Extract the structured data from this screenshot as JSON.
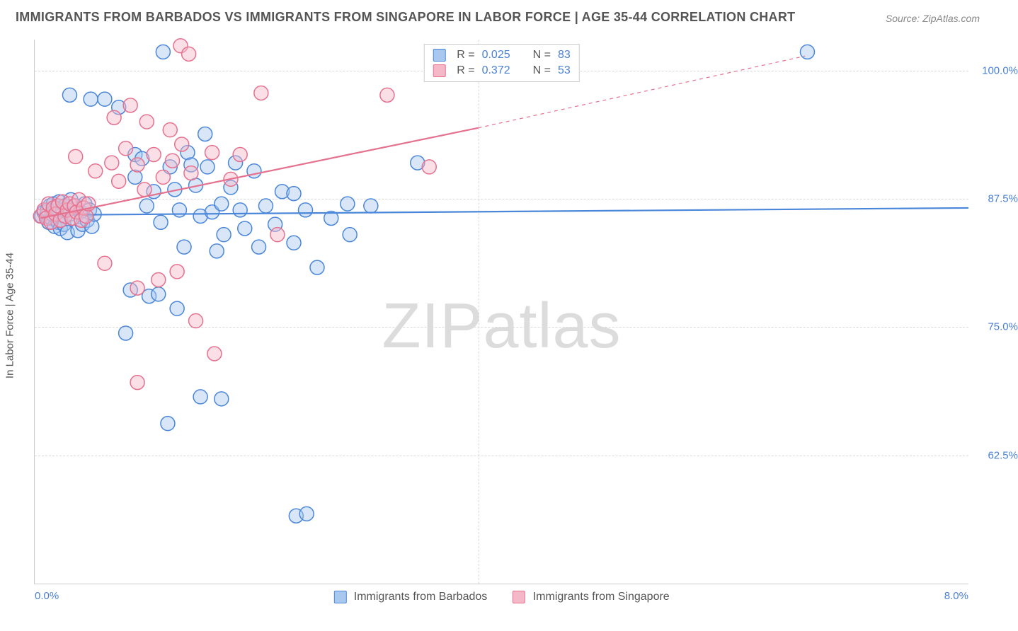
{
  "title": "IMMIGRANTS FROM BARBADOS VS IMMIGRANTS FROM SINGAPORE IN LABOR FORCE | AGE 35-44 CORRELATION CHART",
  "source": "Source: ZipAtlas.com",
  "ylabel": "In Labor Force | Age 35-44",
  "watermark_a": "ZIP",
  "watermark_b": "atlas",
  "chart": {
    "type": "scatter",
    "background_color": "#ffffff",
    "grid_color": "#d8d8d8",
    "axis_color": "#cccccc",
    "tick_label_color": "#4a7fd6",
    "axis_label_color": "#555555",
    "title_color": "#555555",
    "title_fontsize": 18,
    "label_fontsize": 15,
    "tick_fontsize": 15,
    "xlim": [
      0,
      8
    ],
    "ylim": [
      50,
      103
    ],
    "xticks": [
      0,
      8
    ],
    "xtick_labels": [
      "0.0%",
      "8.0%"
    ],
    "yticks": [
      62.5,
      75,
      87.5,
      100
    ],
    "ytick_labels": [
      "62.5%",
      "75.0%",
      "87.5%",
      "100.0%"
    ],
    "vgrid_at": [
      3.8
    ],
    "marker_radius": 10,
    "marker_opacity": 0.45,
    "line_width": 2.2,
    "series": [
      {
        "name": "Immigrants from Barbados",
        "color_fill": "#a9c8f0",
        "color_stroke": "#4a86d9",
        "R": "0.025",
        "N": "83",
        "trend": {
          "x1": 0.05,
          "y1": 85.9,
          "x2": 8.0,
          "y2": 86.6,
          "dash_from_x": 8.5
        },
        "points": [
          [
            0.06,
            85.8
          ],
          [
            0.08,
            86.2
          ],
          [
            0.1,
            85.8
          ],
          [
            0.11,
            86.4
          ],
          [
            0.12,
            85.2
          ],
          [
            0.13,
            86.8
          ],
          [
            0.14,
            85.6
          ],
          [
            0.15,
            86.0
          ],
          [
            0.16,
            87.0
          ],
          [
            0.17,
            84.8
          ],
          [
            0.18,
            86.6
          ],
          [
            0.2,
            85.2
          ],
          [
            0.21,
            87.2
          ],
          [
            0.22,
            84.6
          ],
          [
            0.24,
            86.4
          ],
          [
            0.25,
            85.0
          ],
          [
            0.26,
            86.8
          ],
          [
            0.28,
            84.2
          ],
          [
            0.3,
            86.0
          ],
          [
            0.31,
            87.4
          ],
          [
            0.33,
            85.6
          ],
          [
            0.35,
            86.8
          ],
          [
            0.37,
            84.4
          ],
          [
            0.39,
            86.2
          ],
          [
            0.41,
            85.0
          ],
          [
            0.43,
            87.0
          ],
          [
            0.45,
            85.4
          ],
          [
            0.47,
            86.4
          ],
          [
            0.49,
            84.8
          ],
          [
            0.51,
            86.0
          ],
          [
            0.3,
            97.6
          ],
          [
            0.48,
            97.2
          ],
          [
            0.6,
            97.2
          ],
          [
            0.72,
            96.4
          ],
          [
            0.86,
            91.8
          ],
          [
            0.86,
            89.6
          ],
          [
            0.92,
            91.4
          ],
          [
            0.96,
            86.8
          ],
          [
            1.02,
            88.2
          ],
          [
            1.08,
            85.2
          ],
          [
            1.1,
            101.8
          ],
          [
            1.16,
            90.6
          ],
          [
            1.2,
            88.4
          ],
          [
            1.24,
            86.4
          ],
          [
            1.28,
            82.8
          ],
          [
            1.31,
            92.0
          ],
          [
            1.34,
            90.8
          ],
          [
            1.38,
            88.8
          ],
          [
            1.42,
            85.8
          ],
          [
            1.46,
            93.8
          ],
          [
            1.48,
            90.6
          ],
          [
            1.52,
            86.2
          ],
          [
            1.56,
            82.4
          ],
          [
            1.6,
            87.0
          ],
          [
            1.62,
            84.0
          ],
          [
            1.68,
            88.6
          ],
          [
            1.72,
            91.0
          ],
          [
            1.76,
            86.4
          ],
          [
            1.8,
            84.6
          ],
          [
            1.88,
            90.2
          ],
          [
            1.92,
            82.8
          ],
          [
            1.98,
            86.8
          ],
          [
            2.06,
            85.0
          ],
          [
            2.12,
            88.2
          ],
          [
            2.22,
            83.2
          ],
          [
            2.32,
            86.4
          ],
          [
            2.42,
            80.8
          ],
          [
            2.54,
            85.6
          ],
          [
            2.7,
            84.0
          ],
          [
            2.88,
            86.8
          ],
          [
            0.82,
            78.6
          ],
          [
            0.98,
            78.0
          ],
          [
            1.06,
            78.2
          ],
          [
            1.22,
            76.8
          ],
          [
            0.78,
            74.4
          ],
          [
            1.42,
            68.2
          ],
          [
            1.6,
            68.0
          ],
          [
            1.14,
            65.6
          ],
          [
            2.24,
            56.6
          ],
          [
            2.33,
            56.8
          ],
          [
            2.22,
            88.0
          ],
          [
            2.68,
            87.0
          ],
          [
            3.28,
            91.0
          ],
          [
            6.62,
            101.8
          ]
        ]
      },
      {
        "name": "Immigrants from Singapore",
        "color_fill": "#f5b8c8",
        "color_stroke": "#e6718f",
        "R": "0.372",
        "N": "53",
        "trend": {
          "x1": 0.05,
          "y1": 85.6,
          "x2": 3.8,
          "y2": 94.4,
          "dash_from_x": 3.8,
          "dash_to_x": 6.6,
          "dash_to_y": 101.4
        },
        "points": [
          [
            0.05,
            85.8
          ],
          [
            0.08,
            86.4
          ],
          [
            0.1,
            85.6
          ],
          [
            0.12,
            87.0
          ],
          [
            0.14,
            85.2
          ],
          [
            0.16,
            86.6
          ],
          [
            0.18,
            86.0
          ],
          [
            0.2,
            86.8
          ],
          [
            0.22,
            85.4
          ],
          [
            0.24,
            87.2
          ],
          [
            0.26,
            85.8
          ],
          [
            0.28,
            86.4
          ],
          [
            0.3,
            87.0
          ],
          [
            0.32,
            85.6
          ],
          [
            0.34,
            86.8
          ],
          [
            0.36,
            86.2
          ],
          [
            0.38,
            87.4
          ],
          [
            0.4,
            85.4
          ],
          [
            0.42,
            86.6
          ],
          [
            0.44,
            85.8
          ],
          [
            0.46,
            87.0
          ],
          [
            0.35,
            91.6
          ],
          [
            0.52,
            90.2
          ],
          [
            0.66,
            91.0
          ],
          [
            0.72,
            89.2
          ],
          [
            0.78,
            92.4
          ],
          [
            0.88,
            90.8
          ],
          [
            0.94,
            88.4
          ],
          [
            1.02,
            91.8
          ],
          [
            1.1,
            89.6
          ],
          [
            1.18,
            91.2
          ],
          [
            1.26,
            92.8
          ],
          [
            1.34,
            90.0
          ],
          [
            0.68,
            95.4
          ],
          [
            0.82,
            96.6
          ],
          [
            0.96,
            95.0
          ],
          [
            1.16,
            94.2
          ],
          [
            1.25,
            102.4
          ],
          [
            1.32,
            101.6
          ],
          [
            1.52,
            92.0
          ],
          [
            1.68,
            89.4
          ],
          [
            1.76,
            91.8
          ],
          [
            1.94,
            97.8
          ],
          [
            2.08,
            84.0
          ],
          [
            3.02,
            97.6
          ],
          [
            3.38,
            90.6
          ],
          [
            0.6,
            81.2
          ],
          [
            0.88,
            78.8
          ],
          [
            1.06,
            79.6
          ],
          [
            1.22,
            80.4
          ],
          [
            1.38,
            75.6
          ],
          [
            1.54,
            72.4
          ],
          [
            0.88,
            69.6
          ]
        ]
      }
    ],
    "legend_bottom": [
      {
        "label": "Immigrants from Barbados",
        "fill": "#a9c8f0",
        "stroke": "#4a86d9"
      },
      {
        "label": "Immigrants from Singapore",
        "fill": "#f5b8c8",
        "stroke": "#e6718f"
      }
    ]
  }
}
